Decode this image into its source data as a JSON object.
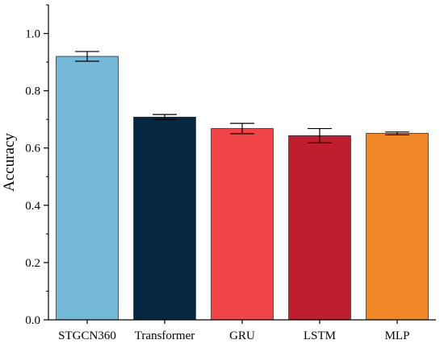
{
  "chart_data": {
    "type": "bar",
    "title": "",
    "xlabel": "",
    "ylabel": "Accuracy",
    "ylim": [
      0,
      1.1
    ],
    "yticks": [
      0.0,
      0.2,
      0.4,
      0.6,
      0.8,
      1.0
    ],
    "ytick_labels": [
      "0.0",
      "0.2",
      "0.4",
      "0.6",
      "0.8",
      "1.0"
    ],
    "grid": false,
    "legend": "none",
    "categories": [
      "STGCN360",
      "Transformer",
      "GRU",
      "LSTM",
      "MLP"
    ],
    "values": [
      0.92,
      0.708,
      0.668,
      0.643,
      0.651
    ],
    "errors": [
      0.017,
      0.009,
      0.018,
      0.025,
      0.005
    ],
    "colors": [
      "#74B9D8",
      "#052741",
      "#EF4548",
      "#BE1E2D",
      "#F08726"
    ]
  }
}
